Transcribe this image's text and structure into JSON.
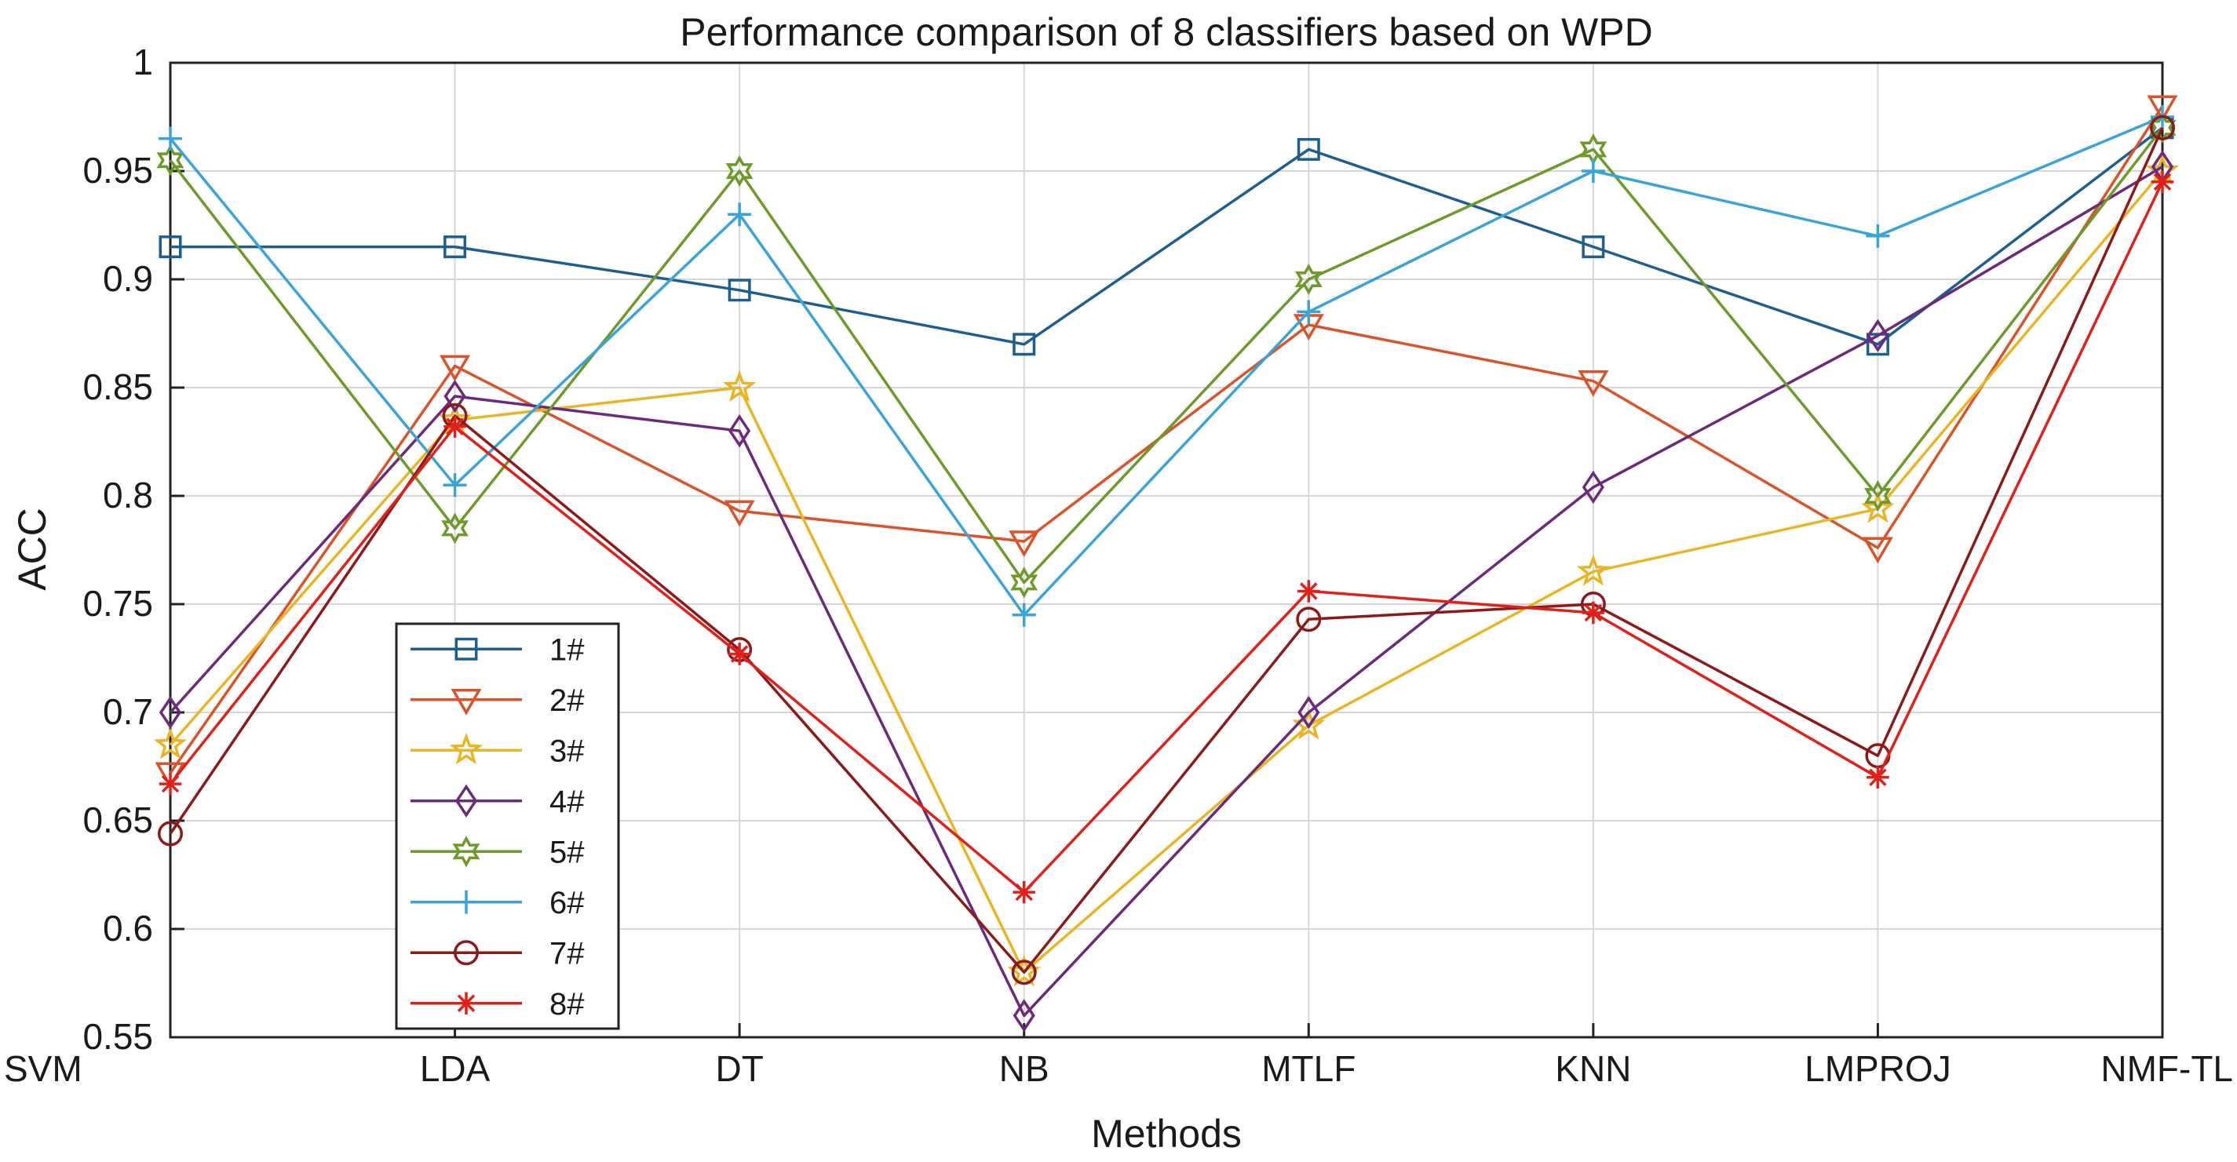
{
  "chart_data": {
    "type": "line",
    "title": "Performance comparison of 8 classifiers  based on WPD",
    "xlabel": "Methods",
    "ylabel": "ACC",
    "categories": [
      "SVM",
      "LDA",
      "DT",
      "NB",
      "MTLF",
      "KNN",
      "LMPROJ",
      "NMF-TL"
    ],
    "ylim": [
      0.55,
      1
    ],
    "yticks": [
      "0.55",
      "0.6",
      "0.65",
      "0.7",
      "0.75",
      "0.8",
      "0.85",
      "0.9",
      "0.95",
      "1"
    ],
    "grid": true,
    "legend_position": "lower-left",
    "series": [
      {
        "name": "1#",
        "color": "#1f5f8f",
        "marker": "square",
        "values": [
          0.915,
          0.915,
          0.895,
          0.87,
          0.96,
          0.915,
          0.87,
          0.97
        ]
      },
      {
        "name": "2#",
        "color": "#d9542a",
        "marker": "triangle",
        "values": [
          0.672,
          0.86,
          0.793,
          0.779,
          0.879,
          0.853,
          0.776,
          0.98
        ]
      },
      {
        "name": "3#",
        "color": "#e8b527",
        "marker": "star",
        "values": [
          0.685,
          0.835,
          0.85,
          0.58,
          0.694,
          0.765,
          0.794,
          0.95
        ]
      },
      {
        "name": "4#",
        "color": "#6c2a7a",
        "marker": "diamond",
        "values": [
          0.7,
          0.846,
          0.83,
          0.56,
          0.7,
          0.804,
          0.874,
          0.952
        ]
      },
      {
        "name": "5#",
        "color": "#6d9a2b",
        "marker": "hexagram",
        "values": [
          0.955,
          0.785,
          0.95,
          0.76,
          0.9,
          0.96,
          0.8,
          0.97
        ]
      },
      {
        "name": "6#",
        "color": "#3aa3d9",
        "marker": "plus",
        "values": [
          0.965,
          0.805,
          0.93,
          0.745,
          0.885,
          0.95,
          0.92,
          0.975
        ]
      },
      {
        "name": "7#",
        "color": "#8b1a1a",
        "marker": "circle",
        "values": [
          0.644,
          0.837,
          0.729,
          0.58,
          0.743,
          0.75,
          0.68,
          0.97
        ]
      },
      {
        "name": "8#",
        "color": "#e0201b",
        "marker": "asterisk",
        "values": [
          0.667,
          0.832,
          0.727,
          0.617,
          0.756,
          0.746,
          0.67,
          0.945
        ]
      }
    ]
  }
}
